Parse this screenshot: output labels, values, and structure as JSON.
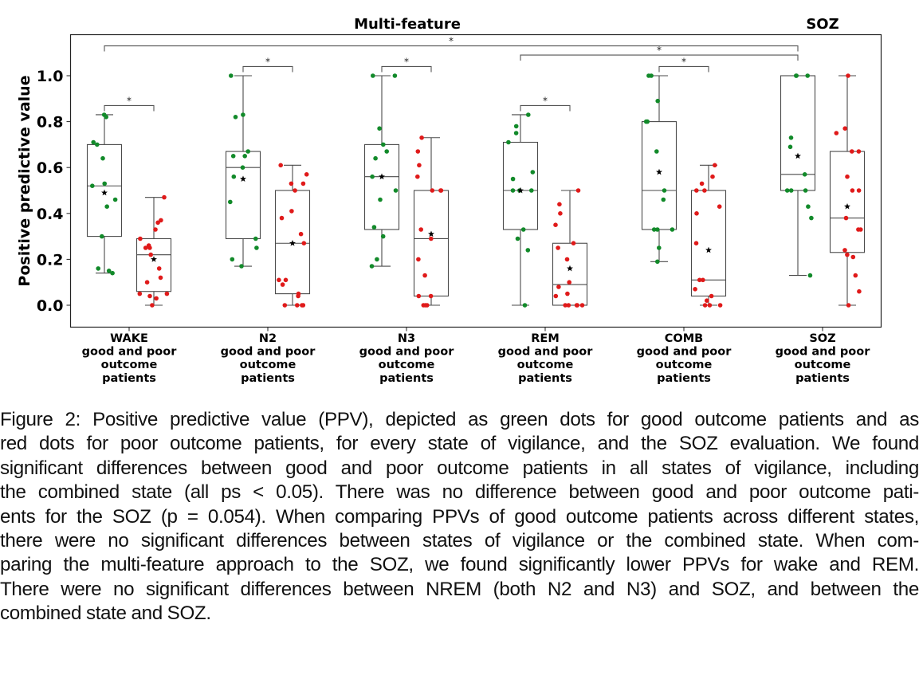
{
  "chart_data": {
    "type": "box",
    "titles": [
      "Multi-feature",
      "SOZ"
    ],
    "ylabel": "Positive predictive value",
    "xlabel": "",
    "ylim": [
      -0.1,
      1.18
    ],
    "yticks": [
      0.0,
      0.2,
      0.4,
      0.6,
      0.8,
      1.0
    ],
    "ytick_labels": [
      "0.0",
      "0.2",
      "0.4",
      "0.6",
      "0.8",
      "1.0"
    ],
    "grid": false,
    "colors": {
      "good": "#128a2a",
      "poor": "#e01a1a",
      "mean_marker": "#000000",
      "box": "#555555"
    },
    "categories": [
      {
        "name": "WAKE",
        "label_lines": [
          "WAKE",
          "good and poor",
          "outcome",
          "patients"
        ]
      },
      {
        "name": "N2",
        "label_lines": [
          "N2",
          "good and poor",
          "outcome",
          "patients"
        ]
      },
      {
        "name": "N3",
        "label_lines": [
          "N3",
          "good and poor",
          "outcome",
          "patients"
        ]
      },
      {
        "name": "REM",
        "label_lines": [
          "REM",
          "good and poor",
          "outcome",
          "patients"
        ]
      },
      {
        "name": "COMB",
        "label_lines": [
          "COMB",
          "good and poor",
          "outcome",
          "patients"
        ]
      },
      {
        "name": "SOZ",
        "label_lines": [
          "SOZ",
          "good and poor",
          "outcome",
          "patients"
        ]
      }
    ],
    "series": [
      {
        "name": "good outcome",
        "color_key": "good",
        "boxes": [
          {
            "q1": 0.3,
            "median": 0.52,
            "q3": 0.7,
            "whisker_low": 0.14,
            "whisker_high": 0.83,
            "mean": 0.49,
            "points": [
              0.83,
              0.82,
              0.71,
              0.7,
              0.64,
              0.53,
              0.52,
              0.46,
              0.43,
              0.3,
              0.16,
              0.14,
              0.15
            ]
          },
          {
            "q1": 0.29,
            "median": 0.6,
            "q3": 0.67,
            "whisker_low": 0.17,
            "whisker_high": 1.0,
            "mean": 0.55,
            "points": [
              1.0,
              0.83,
              0.82,
              0.67,
              0.65,
              0.65,
              0.6,
              0.56,
              0.45,
              0.29,
              0.25,
              0.2,
              0.17
            ]
          },
          {
            "q1": 0.33,
            "median": 0.56,
            "q3": 0.7,
            "whisker_low": 0.17,
            "whisker_high": 1.0,
            "mean": 0.56,
            "points": [
              1.0,
              1.0,
              0.77,
              0.7,
              0.67,
              0.64,
              0.56,
              0.5,
              0.46,
              0.34,
              0.3,
              0.2,
              0.17
            ]
          },
          {
            "q1": 0.33,
            "median": 0.5,
            "q3": 0.71,
            "whisker_low": 0.0,
            "whisker_high": 0.83,
            "mean": 0.5,
            "points": [
              0.83,
              0.78,
              0.75,
              0.71,
              0.58,
              0.55,
              0.5,
              0.5,
              0.5,
              0.33,
              0.29,
              0.24,
              0.0
            ]
          },
          {
            "q1": 0.33,
            "median": 0.5,
            "q3": 0.8,
            "whisker_low": 0.19,
            "whisker_high": 1.0,
            "mean": 0.58,
            "points": [
              1.0,
              1.0,
              0.89,
              0.8,
              0.8,
              0.67,
              0.5,
              0.46,
              0.33,
              0.33,
              0.33,
              0.25,
              0.19
            ]
          },
          {
            "q1": 0.5,
            "median": 0.57,
            "q3": 1.0,
            "whisker_low": 0.13,
            "whisker_high": 1.0,
            "mean": 0.65,
            "points": [
              1.0,
              1.0,
              1.0,
              0.73,
              0.69,
              0.57,
              0.5,
              0.5,
              0.5,
              0.43,
              0.38,
              0.13
            ]
          }
        ]
      },
      {
        "name": "poor outcome",
        "color_key": "poor",
        "boxes": [
          {
            "q1": 0.06,
            "median": 0.22,
            "q3": 0.29,
            "whisker_low": 0.0,
            "whisker_high": 0.47,
            "mean": 0.2,
            "points": [
              0.47,
              0.37,
              0.36,
              0.33,
              0.29,
              0.26,
              0.25,
              0.25,
              0.22,
              0.16,
              0.12,
              0.1,
              0.05,
              0.05,
              0.04,
              0.03,
              0.0
            ]
          },
          {
            "q1": 0.05,
            "median": 0.27,
            "q3": 0.5,
            "whisker_low": 0.0,
            "whisker_high": 0.61,
            "mean": 0.27,
            "points": [
              0.61,
              0.57,
              0.53,
              0.53,
              0.5,
              0.41,
              0.38,
              0.31,
              0.27,
              0.11,
              0.11,
              0.09,
              0.05,
              0.04,
              0.0,
              0.0,
              0.0,
              0.0
            ]
          },
          {
            "q1": 0.04,
            "median": 0.29,
            "q3": 0.5,
            "whisker_low": 0.0,
            "whisker_high": 0.73,
            "mean": 0.31,
            "points": [
              0.73,
              0.67,
              0.61,
              0.56,
              0.5,
              0.5,
              0.5,
              0.33,
              0.29,
              0.2,
              0.13,
              0.04,
              0.04,
              0.0,
              0.0,
              0.0
            ]
          },
          {
            "q1": 0.0,
            "median": 0.09,
            "q3": 0.27,
            "whisker_low": 0.0,
            "whisker_high": 0.5,
            "mean": 0.16,
            "points": [
              0.5,
              0.44,
              0.4,
              0.35,
              0.27,
              0.25,
              0.2,
              0.08,
              0.1,
              0.05,
              0.04,
              0.0,
              0.0,
              0.0,
              0.0,
              0.0
            ]
          },
          {
            "q1": 0.04,
            "median": 0.11,
            "q3": 0.5,
            "whisker_low": 0.0,
            "whisker_high": 0.61,
            "mean": 0.24,
            "points": [
              0.61,
              0.56,
              0.53,
              0.5,
              0.5,
              0.43,
              0.4,
              0.27,
              0.11,
              0.11,
              0.07,
              0.04,
              0.02,
              0.0,
              0.0,
              0.0
            ]
          },
          {
            "q1": 0.23,
            "median": 0.38,
            "q3": 0.67,
            "whisker_low": 0.0,
            "whisker_high": 1.0,
            "mean": 0.43,
            "points": [
              1.0,
              0.77,
              0.75,
              0.67,
              0.67,
              0.56,
              0.5,
              0.5,
              0.38,
              0.33,
              0.33,
              0.24,
              0.22,
              0.21,
              0.13,
              0.06,
              0.0
            ]
          }
        ]
      }
    ],
    "significance": [
      {
        "from": "WAKE-good",
        "to": "SOZ-good",
        "label": "*",
        "level": 1.13
      },
      {
        "from": "REM-good",
        "to": "SOZ-good",
        "label": "*",
        "level": 1.09
      },
      {
        "from": "N2-good",
        "to": "N2-poor",
        "label": "*",
        "level": 1.04
      },
      {
        "from": "N3-good",
        "to": "N3-poor",
        "label": "*",
        "level": 1.04
      },
      {
        "from": "COMB-good",
        "to": "COMB-poor",
        "label": "*",
        "level": 1.04
      },
      {
        "from": "WAKE-good",
        "to": "WAKE-poor",
        "label": "*",
        "level": 0.87
      },
      {
        "from": "REM-good",
        "to": "REM-poor",
        "label": "*",
        "level": 0.87
      }
    ]
  },
  "caption": {
    "lines": [
      "Figure 2: Positive predictive value (PPV), depicted as green dots for good outcome patients and as",
      "red dots for poor outcome patients, for every state of vigilance, and the SOZ evaluation. We found",
      "significant differences between good and poor outcome patients in all states of vigilance, including",
      "the combined state (all ps < 0.05). There was no difference between good and poor outcome pati-",
      "ents for the SOZ (p = 0.054). When comparing PPVs of good outcome patients across different states,",
      "there were no significant differences between states of vigilance or the combined state. When com-",
      "paring the multi-feature approach to the SOZ, we found significantly lower PPVs for wake and REM.",
      "There were no significant differences between NREM (both N2 and N3) and SOZ, and between the",
      "combined state and SOZ."
    ]
  }
}
